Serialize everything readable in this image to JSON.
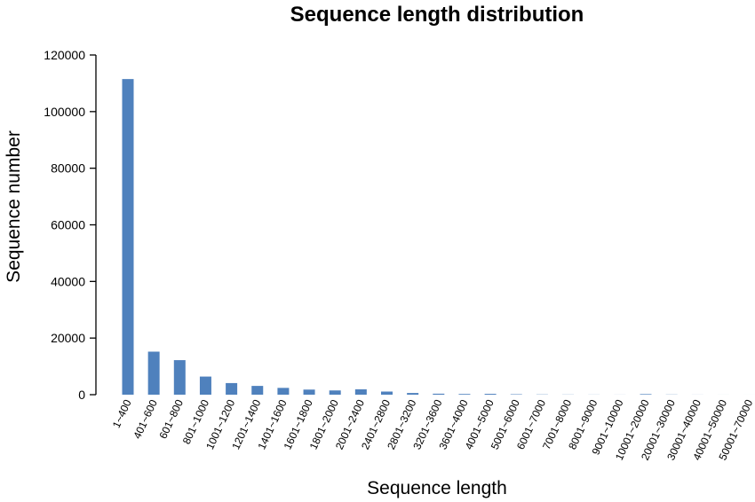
{
  "chart_data": {
    "type": "bar",
    "title": "Sequence length distribution",
    "xlabel": "Sequence length",
    "ylabel": "Sequence number",
    "ylim": [
      0,
      120000
    ],
    "yticks": [
      0,
      20000,
      40000,
      60000,
      80000,
      100000,
      120000
    ],
    "categories": [
      "1~400",
      "401~600",
      "601~800",
      "801~1000",
      "1001~1200",
      "1201~1400",
      "1401~1600",
      "1601~1800",
      "1801~2000",
      "2001~2400",
      "2401~2800",
      "2801~3200",
      "3201~3600",
      "3601~4000",
      "4001~5000",
      "5001~6000",
      "6001~7000",
      "7001~8000",
      "8001~9000",
      "9001~10000",
      "10001~20000",
      "20001~30000",
      "30001~40000",
      "40001~50000",
      "50001~70000"
    ],
    "values": [
      111500,
      15200,
      12200,
      6400,
      4100,
      3100,
      2400,
      1800,
      1500,
      1900,
      1100,
      600,
      350,
      250,
      300,
      150,
      80,
      50,
      30,
      20,
      200,
      60,
      20,
      10,
      5
    ],
    "grid": false,
    "bar_color": "#4f81bd"
  }
}
